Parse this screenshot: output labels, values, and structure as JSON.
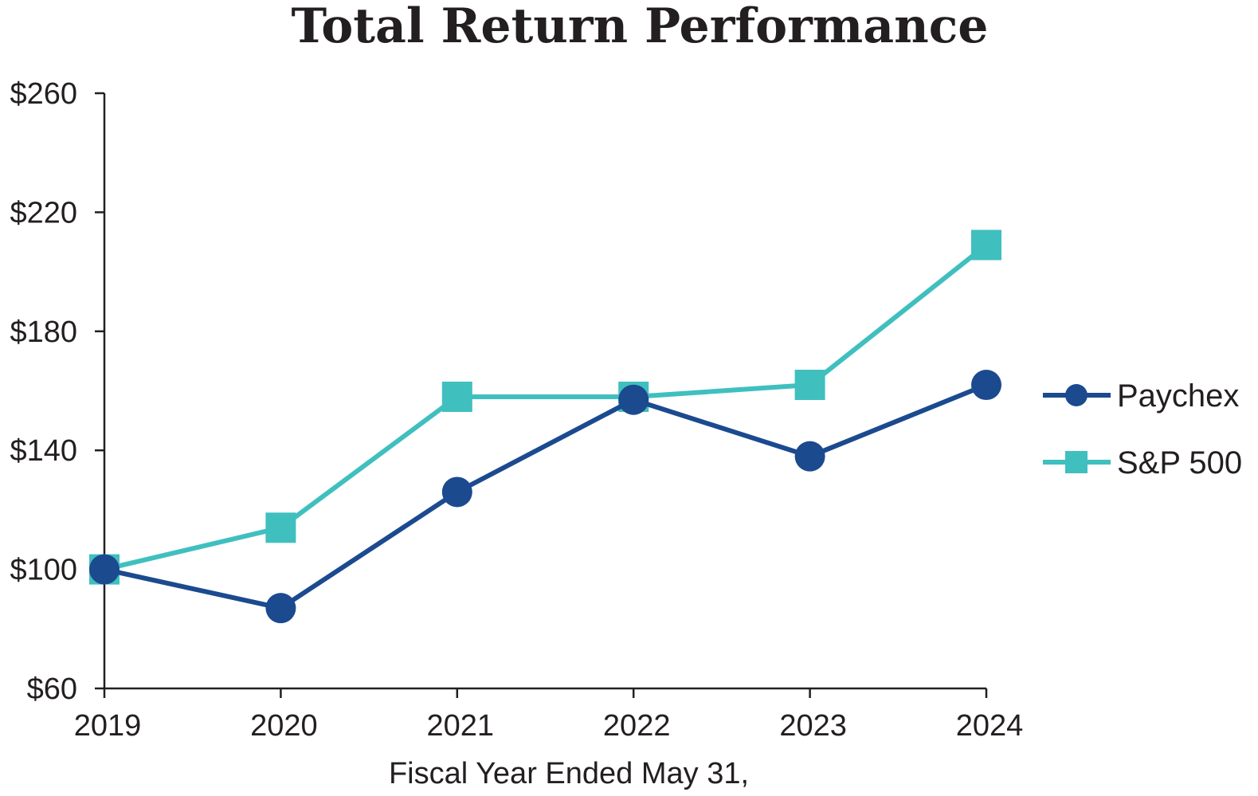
{
  "chart_data": {
    "type": "line",
    "title": "Total Return Performance",
    "xlabel": "Fiscal Year Ended May 31,",
    "ylabel": "",
    "categories": [
      "2019",
      "2020",
      "2021",
      "2022",
      "2023",
      "2024"
    ],
    "ylim": [
      60,
      260
    ],
    "yticks": [
      60,
      100,
      140,
      180,
      220,
      260
    ],
    "ytick_labels": [
      "$60",
      "$100",
      "$140",
      "$180",
      "$220",
      "$260"
    ],
    "grid": false,
    "legend_position": "right",
    "series": [
      {
        "name": "Paychex",
        "values": [
          100,
          87,
          126,
          157,
          138,
          162
        ],
        "color": "#1b4a8f",
        "marker": "circle"
      },
      {
        "name": "S&P 500",
        "values": [
          100,
          114,
          158,
          158,
          162,
          209
        ],
        "color": "#40bfbf",
        "marker": "square"
      }
    ]
  }
}
